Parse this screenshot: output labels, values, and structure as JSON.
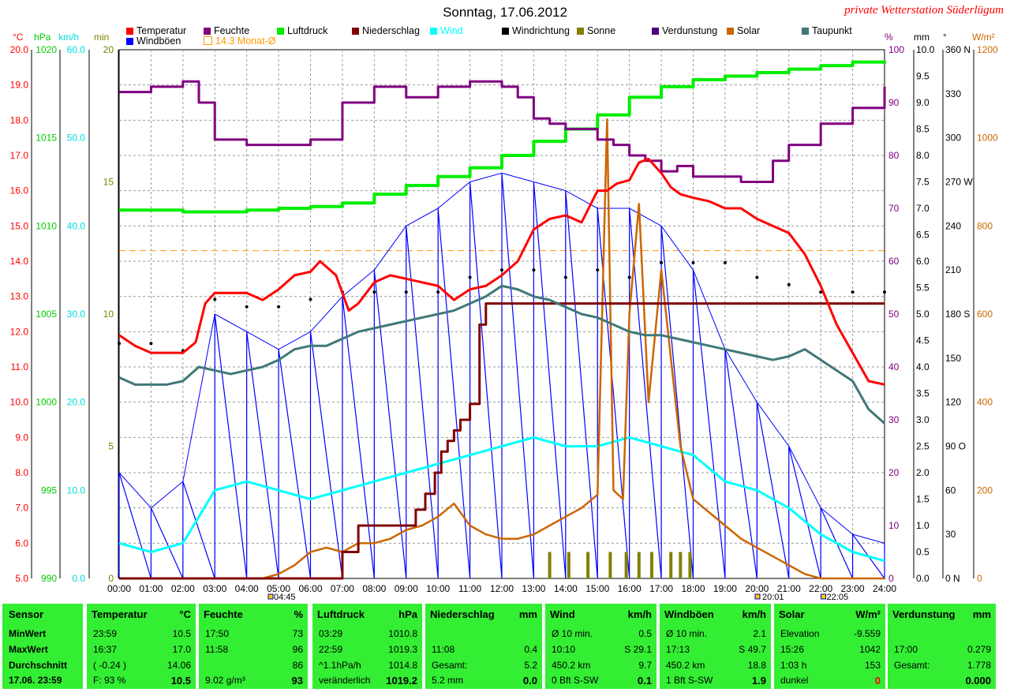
{
  "title": "Sonntag, 17.06.2012",
  "station": "private Wetterstation Süderlügum",
  "colors": {
    "temperature": "#ff0000",
    "humidity": "#800080",
    "pressure": "#00ee00",
    "precip": "#800000",
    "wind": "#00ffff",
    "gusts": "#0000ff",
    "direction": "#000000",
    "sun": "#808000",
    "evaporation": "#4b0082",
    "solar": "#cc6600",
    "dewpoint": "#407878",
    "panel": "#33ee33"
  },
  "legend": [
    {
      "label": "Temperatur",
      "color": "#ff0000"
    },
    {
      "label": "Feuchte",
      "color": "#800080"
    },
    {
      "label": "Luftdruck",
      "color": "#00ee00"
    },
    {
      "label": "Niederschlag",
      "color": "#800000"
    },
    {
      "label": "Wind",
      "color": "#00ffff"
    },
    {
      "label": "Windrichtung",
      "color": "#000000"
    },
    {
      "label": "Sonne",
      "color": "#808000"
    },
    {
      "label": "Verdunstung",
      "color": "#4b0082"
    },
    {
      "label": "Solar",
      "color": "#cc6600"
    },
    {
      "label": "Taupunkt",
      "color": "#407878"
    },
    {
      "label": "Windböen",
      "color": "#0000ff"
    },
    {
      "label": "14.3 Monat-Ø",
      "color": "#ff9900"
    }
  ],
  "axis_units": {
    "temp": "°C",
    "pressure": "hPa",
    "wind": "km/h",
    "sun": "min",
    "humidity": "%",
    "precip": "mm",
    "direction": "°",
    "solar": "W/m²"
  },
  "axes": {
    "temp_ticks": [
      "20.0",
      "19.0",
      "18.0",
      "17.0",
      "16.0",
      "15.0",
      "14.0",
      "13.0",
      "12.0",
      "11.0",
      "10.0",
      "9.0",
      "8.0",
      "7.0",
      "6.0",
      "5.0"
    ],
    "pressure_ticks": [
      "1020",
      "1015",
      "1010",
      "1005",
      "1000",
      "995",
      "990"
    ],
    "wind_ticks": [
      "60.0",
      "50.0",
      "40.0",
      "30.0",
      "20.0",
      "10.0",
      "0.0"
    ],
    "sun_ticks": [
      "20",
      "15",
      "10",
      "5",
      "0"
    ],
    "humidity_ticks": [
      "100",
      "90",
      "80",
      "70",
      "60",
      "50",
      "40",
      "30",
      "20",
      "10",
      "0"
    ],
    "precip_ticks": [
      "10.0",
      "9.5",
      "9.0",
      "8.5",
      "8.0",
      "7.5",
      "7.0",
      "6.5",
      "6.0",
      "5.5",
      "5.0",
      "4.5",
      "4.0",
      "3.5",
      "3.0",
      "2.5",
      "2.0",
      "1.5",
      "1.0",
      "0.5",
      "0.0"
    ],
    "direction_ticks": [
      "360 N",
      "330",
      "300",
      "270 W",
      "240",
      "210",
      "180 S",
      "150",
      "120",
      "90 O",
      "60",
      "30",
      "0 N"
    ],
    "solar_ticks": [
      "1200",
      "1000",
      "800",
      "600",
      "400",
      "200",
      "0"
    ],
    "time_ticks": [
      "00:00",
      "01:00",
      "02:00",
      "03:00",
      "04:00",
      "05:00",
      "06:00",
      "07:00",
      "08:00",
      "09:00",
      "10:00",
      "11:00",
      "12:00",
      "13:00",
      "14:00",
      "15:00",
      "16:00",
      "17:00",
      "18:00",
      "19:00",
      "20:00",
      "21:00",
      "22:00",
      "23:00",
      "24:00"
    ],
    "sunrise": "04:45",
    "sunset": "22:05",
    "twilight": "20:01"
  },
  "chart_data": {
    "type": "line",
    "title": "Sonntag, 17.06.2012",
    "x_unit": "hour of day",
    "xlim": [
      0,
      24
    ],
    "monthly_avg_temp": 14.3,
    "series": [
      {
        "name": "Temperatur",
        "unit": "°C",
        "ylim": [
          5,
          20
        ],
        "x": [
          0,
          0.5,
          1,
          1.5,
          2,
          2.4,
          2.7,
          3,
          3.5,
          4,
          4.5,
          5,
          5.5,
          6,
          6.3,
          6.8,
          7.2,
          7.5,
          8,
          8.5,
          9,
          9.5,
          10,
          10.5,
          11,
          11.5,
          12,
          12.5,
          13,
          13.5,
          14,
          14.5,
          15,
          15.3,
          15.6,
          16,
          16.3,
          16.6,
          17,
          17.3,
          17.6,
          18,
          18.5,
          19,
          19.5,
          20,
          20.5,
          21,
          21.5,
          22,
          22.5,
          23,
          23.5,
          24
        ],
        "y": [
          11.9,
          11.6,
          11.4,
          11.4,
          11.4,
          11.7,
          12.8,
          13.1,
          13.1,
          13.1,
          12.9,
          13.2,
          13.6,
          13.7,
          14.0,
          13.6,
          12.6,
          12.8,
          13.4,
          13.6,
          13.5,
          13.4,
          13.3,
          12.9,
          13.2,
          13.3,
          13.6,
          14.0,
          14.9,
          15.2,
          15.3,
          15.1,
          16.0,
          16.0,
          16.2,
          16.3,
          16.8,
          16.9,
          16.5,
          16.1,
          15.9,
          15.8,
          15.7,
          15.5,
          15.5,
          15.2,
          15.0,
          14.8,
          14.2,
          13.3,
          12.2,
          11.4,
          10.6,
          10.5
        ]
      },
      {
        "name": "Feuchte",
        "unit": "%",
        "ylim": [
          0,
          100
        ],
        "x": [
          0,
          1,
          2,
          2.5,
          3,
          4,
          5,
          6,
          6.8,
          7,
          8,
          9,
          10,
          11,
          12,
          12.5,
          13,
          13.5,
          14,
          15,
          15.5,
          16,
          16.5,
          17,
          17.5,
          18,
          19,
          19.5,
          20,
          20.5,
          21,
          22,
          23,
          24
        ],
        "y": [
          92,
          93,
          94,
          90,
          83,
          82,
          82,
          83,
          83,
          90,
          93,
          91,
          93,
          94,
          93,
          91,
          87,
          86,
          85,
          83,
          82,
          80,
          79,
          77,
          78,
          76,
          76,
          75,
          75,
          79,
          82,
          86,
          89,
          93
        ]
      },
      {
        "name": "Luftdruck",
        "unit": "hPa",
        "ylim": [
          990,
          1020
        ],
        "x": [
          0,
          1,
          2,
          3,
          4,
          5,
          6,
          7,
          8,
          9,
          10,
          11,
          12,
          13,
          14,
          15,
          16,
          17,
          18,
          19,
          20,
          21,
          22,
          23,
          24
        ],
        "y": [
          1010.9,
          1010.9,
          1010.8,
          1010.8,
          1010.9,
          1011.0,
          1011.1,
          1011.3,
          1011.8,
          1012.3,
          1012.8,
          1013.3,
          1014.0,
          1014.8,
          1015.5,
          1016.3,
          1017.3,
          1017.9,
          1018.3,
          1018.5,
          1018.7,
          1018.9,
          1019.1,
          1019.3,
          1019.2
        ]
      },
      {
        "name": "Niederschlag",
        "unit": "mm",
        "ylim": [
          0,
          10
        ],
        "x": [
          0,
          6.9,
          7.0,
          7.5,
          8.0,
          9.0,
          9.3,
          9.6,
          9.9,
          10.1,
          10.3,
          10.5,
          10.7,
          11.0,
          11.3,
          11.5,
          24
        ],
        "y": [
          0,
          0,
          0.5,
          1.0,
          1.0,
          1.0,
          1.3,
          1.6,
          2.0,
          2.4,
          2.6,
          2.8,
          3.0,
          3.3,
          4.8,
          5.2,
          5.2
        ]
      },
      {
        "name": "Taupunkt",
        "unit": "°C",
        "ylim": [
          5,
          20
        ],
        "x": [
          0,
          0.5,
          1,
          1.5,
          2,
          2.5,
          3,
          3.5,
          4,
          4.5,
          5,
          5.5,
          6,
          6.5,
          7,
          7.5,
          8,
          8.5,
          9,
          9.5,
          10,
          10.5,
          11,
          11.5,
          12,
          12.5,
          13,
          13.5,
          14,
          14.5,
          15,
          15.5,
          16,
          16.5,
          17,
          17.5,
          18,
          18.5,
          19,
          19.5,
          20,
          20.5,
          21,
          21.5,
          22,
          22.5,
          23,
          23.5,
          24
        ],
        "y": [
          10.7,
          10.5,
          10.5,
          10.5,
          10.6,
          11.0,
          10.9,
          10.8,
          10.9,
          11.0,
          11.2,
          11.5,
          11.6,
          11.6,
          11.8,
          12.0,
          12.1,
          12.2,
          12.3,
          12.4,
          12.5,
          12.6,
          12.8,
          13.0,
          13.3,
          13.2,
          13.0,
          12.9,
          12.7,
          12.5,
          12.4,
          12.2,
          12.0,
          11.9,
          11.9,
          11.8,
          11.7,
          11.6,
          11.5,
          11.4,
          11.3,
          11.2,
          11.3,
          11.5,
          11.2,
          10.9,
          10.6,
          9.8,
          9.4
        ]
      },
      {
        "name": "Wind",
        "unit": "km/h",
        "ylim": [
          0,
          60
        ],
        "x": [
          0,
          1,
          2,
          3,
          4,
          5,
          6,
          7,
          8,
          9,
          10,
          11,
          12,
          13,
          14,
          15,
          16,
          17,
          18,
          19,
          20,
          21,
          22,
          23,
          24
        ],
        "y": [
          4,
          3,
          4,
          10,
          11,
          10,
          9,
          10,
          11,
          12,
          13,
          14,
          15,
          16,
          15,
          15,
          16,
          15,
          14,
          11,
          10,
          8,
          5,
          3,
          2
        ]
      },
      {
        "name": "Windböen",
        "unit": "km/h",
        "ylim": [
          0,
          60
        ],
        "x": [
          0,
          1,
          2,
          3,
          4,
          5,
          6,
          7,
          8,
          9,
          10,
          11,
          12,
          13,
          14,
          15,
          16,
          17,
          18,
          19,
          20,
          21,
          22,
          23,
          24
        ],
        "y": [
          12,
          8,
          11,
          30,
          28,
          26,
          28,
          32,
          35,
          40,
          42,
          45,
          46,
          45,
          44,
          42,
          42,
          40,
          35,
          26,
          20,
          15,
          8,
          5,
          4
        ]
      },
      {
        "name": "Windrichtung",
        "unit": "°",
        "ylim": [
          0,
          360
        ],
        "x": [
          0,
          1,
          2,
          3,
          4,
          5,
          6,
          7,
          8,
          9,
          10,
          11,
          12,
          13,
          14,
          15,
          16,
          17,
          18,
          19,
          20,
          21,
          22,
          23,
          24
        ],
        "y": [
          160,
          160,
          155,
          190,
          185,
          185,
          190,
          195,
          195,
          195,
          195,
          205,
          210,
          210,
          205,
          210,
          205,
          215,
          215,
          215,
          205,
          200,
          195,
          195,
          195
        ]
      },
      {
        "name": "Solar",
        "unit": "W/m²",
        "ylim": [
          0,
          1200
        ],
        "x": [
          0,
          4.5,
          5,
          5.5,
          6,
          6.5,
          7,
          7.5,
          8,
          8.5,
          9,
          9.5,
          10,
          10.5,
          11,
          11.5,
          12,
          12.5,
          13,
          13.5,
          14,
          14.5,
          15,
          15.3,
          15.5,
          15.8,
          16,
          16.3,
          16.6,
          17,
          17.3,
          17.6,
          18,
          18.5,
          19,
          19.5,
          20,
          20.5,
          21,
          21.5,
          22,
          24
        ],
        "y": [
          0,
          0,
          10,
          30,
          60,
          70,
          60,
          80,
          80,
          90,
          110,
          120,
          140,
          170,
          120,
          100,
          90,
          90,
          100,
          120,
          140,
          160,
          190,
          1042,
          200,
          180,
          600,
          850,
          400,
          700,
          500,
          300,
          180,
          150,
          120,
          90,
          70,
          50,
          30,
          10,
          0,
          0
        ]
      },
      {
        "name": "Sonne",
        "unit": "min",
        "x": [
          13.5,
          14.1,
          14.7,
          15.4,
          15.9,
          16.3,
          16.7,
          17.3,
          17.6,
          17.9
        ],
        "y": [
          1,
          1,
          1,
          1,
          1,
          1,
          1,
          1,
          1,
          1
        ]
      }
    ]
  },
  "table": {
    "row_labels": [
      "Sensor",
      "MinWert",
      "MaxWert",
      "Durchschnitt",
      "17.06. 23:59"
    ],
    "panels": [
      {
        "name": "Temperatur",
        "unit": "°C",
        "rows": [
          [
            "23:59",
            "10.5"
          ],
          [
            "16:37",
            "17.0"
          ],
          [
            "( -0.24 )",
            "14.06"
          ],
          [
            "F: 93 %",
            "10.5"
          ]
        ]
      },
      {
        "name": "Feuchte",
        "unit": "%",
        "rows": [
          [
            "17:50",
            "73"
          ],
          [
            "11:58",
            "96"
          ],
          [
            "",
            "86"
          ],
          [
            "9.02 g/m³",
            "93"
          ]
        ]
      },
      {
        "name": "Luftdruck",
        "unit": "hPa",
        "rows": [
          [
            "03:29",
            "1010.8"
          ],
          [
            "22:59",
            "1019.3"
          ],
          [
            "^1.1hPa/h",
            "1014.8"
          ],
          [
            "veränderlich",
            "1019.2"
          ]
        ]
      },
      {
        "name": "Niederschlag",
        "unit": "mm",
        "rows": [
          [
            "",
            ""
          ],
          [
            "11:08",
            "0.4"
          ],
          [
            "Gesamt:",
            "5.2"
          ],
          [
            "5.2 mm",
            "0.0"
          ]
        ]
      },
      {
        "name": "Wind",
        "unit": "km/h",
        "rows": [
          [
            "Ø 10 min.",
            "0.5"
          ],
          [
            "10:10",
            "S 29.1"
          ],
          [
            "450.2 km",
            "9.7"
          ],
          [
            "0 Bft S-SW",
            "0.1"
          ]
        ]
      },
      {
        "name": "Windböen",
        "unit": "km/h",
        "rows": [
          [
            "Ø 10 min.",
            "2.1"
          ],
          [
            "17:13",
            "S 49.7"
          ],
          [
            "450.2 km",
            "18.8"
          ],
          [
            "1 Bft S-SW",
            "1.9"
          ]
        ]
      },
      {
        "name": "Solar",
        "unit": "W/m²",
        "rows": [
          [
            "Elevation",
            "-9.559"
          ],
          [
            "15:26",
            "1042"
          ],
          [
            "1:03 h",
            "153"
          ],
          [
            "dunkel",
            "0"
          ]
        ]
      },
      {
        "name": "Verdunstung",
        "unit": "mm",
        "rows": [
          [
            "",
            ""
          ],
          [
            "17:00",
            "0.279"
          ],
          [
            "Gesamt:",
            "1.778"
          ],
          [
            "",
            "0.000"
          ]
        ]
      }
    ]
  }
}
